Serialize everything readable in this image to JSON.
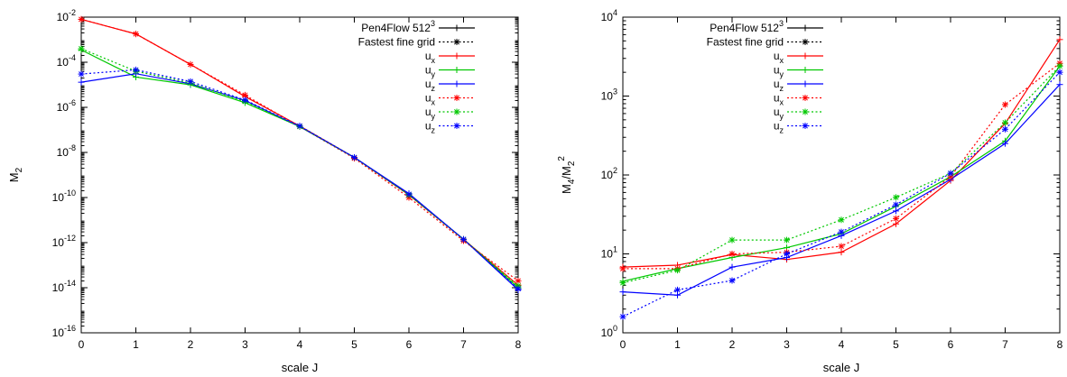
{
  "chart_data": [
    {
      "type": "line",
      "xlabel": "scale J",
      "ylabel_main": "M",
      "ylabel_sub": "2",
      "y_scale": "log",
      "xlim": [
        0,
        8
      ],
      "ylim": [
        1e-16,
        0.01
      ],
      "x_ticks": [
        "0",
        "1",
        "2",
        "3",
        "4",
        "5",
        "6",
        "7",
        "8"
      ],
      "y_ticks": [
        {
          "value": 1e-16,
          "base": "10",
          "exp": "-16"
        },
        {
          "value": 1e-14,
          "base": "10",
          "exp": "-14"
        },
        {
          "value": 1e-12,
          "base": "10",
          "exp": "-12"
        },
        {
          "value": 1e-10,
          "base": "10",
          "exp": "-10"
        },
        {
          "value": 1e-08,
          "base": "10",
          "exp": "-8"
        },
        {
          "value": 1e-06,
          "base": "10",
          "exp": "-6"
        },
        {
          "value": 0.0001,
          "base": "10",
          "exp": "-4"
        },
        {
          "value": 0.01,
          "base": "10",
          "exp": "-2"
        }
      ],
      "grid": false,
      "legend_position": "top-right",
      "legend": [
        {
          "label_main": "Pen4Flow 512",
          "label_sup": "3",
          "label_sub": "",
          "color": "#000000",
          "dash": "solid",
          "marker": "plus"
        },
        {
          "label_main": "Fastest fine grid",
          "label_sup": "",
          "label_sub": "",
          "color": "#000000",
          "dash": "dotted",
          "marker": "star"
        },
        {
          "label_main": "u",
          "label_sup": "",
          "label_sub": "x",
          "color": "#ff0000",
          "dash": "solid",
          "marker": "plus"
        },
        {
          "label_main": "u",
          "label_sup": "",
          "label_sub": "y",
          "color": "#00c800",
          "dash": "solid",
          "marker": "plus"
        },
        {
          "label_main": "u",
          "label_sup": "",
          "label_sub": "z",
          "color": "#0000ff",
          "dash": "solid",
          "marker": "plus"
        },
        {
          "label_main": "u",
          "label_sup": "",
          "label_sub": "x",
          "color": "#ff0000",
          "dash": "dotted",
          "marker": "star"
        },
        {
          "label_main": "u",
          "label_sup": "",
          "label_sub": "y",
          "color": "#00c800",
          "dash": "dotted",
          "marker": "star"
        },
        {
          "label_main": "u",
          "label_sup": "",
          "label_sub": "z",
          "color": "#0000ff",
          "dash": "dotted",
          "marker": "star"
        }
      ],
      "x": [
        0,
        1,
        2,
        3,
        4,
        5,
        6,
        7,
        8
      ],
      "series": [
        {
          "color": "#ff0000",
          "dash": "solid",
          "marker": "plus",
          "values": [
            0.008,
            0.0018,
            8e-05,
            3e-06,
            1.5e-07,
            6e-09,
            1.3e-10,
            1.4e-12,
            1.3e-14
          ]
        },
        {
          "color": "#00c800",
          "dash": "solid",
          "marker": "plus",
          "values": [
            0.00035,
            2.2e-05,
            1e-05,
            1.6e-06,
            1.4e-07,
            6e-09,
            1.4e-10,
            1.4e-12,
            1e-14
          ]
        },
        {
          "color": "#0000ff",
          "dash": "solid",
          "marker": "plus",
          "values": [
            1.3e-05,
            3.1e-05,
            1.1e-05,
            2e-06,
            1.4e-07,
            6e-09,
            1.5e-10,
            1.4e-12,
            8e-15
          ]
        },
        {
          "color": "#ff0000",
          "dash": "dotted",
          "marker": "star",
          "values": [
            0.008,
            0.0018,
            8e-05,
            3.5e-06,
            1.4e-07,
            5.5e-09,
            1e-10,
            1.2e-12,
            2e-14
          ]
        },
        {
          "color": "#00c800",
          "dash": "dotted",
          "marker": "star",
          "values": [
            0.0004,
            4e-05,
            1.2e-05,
            1.8e-06,
            1.4e-07,
            6e-09,
            1.3e-10,
            1.4e-12,
            1.2e-14
          ]
        },
        {
          "color": "#0000ff",
          "dash": "dotted",
          "marker": "star",
          "values": [
            3e-05,
            4.6e-05,
            1.4e-05,
            2.1e-06,
            1.5e-07,
            6e-09,
            1.4e-10,
            1.4e-12,
            9e-15
          ]
        }
      ]
    },
    {
      "type": "line",
      "xlabel": "scale J",
      "ylabel_main": "M",
      "ylabel_sub4": "4",
      "ylabel_mid": "/M",
      "ylabel_sub2": "2",
      "ylabel_sup": "2",
      "y_scale": "log",
      "xlim": [
        0,
        8
      ],
      "ylim": [
        1,
        10000.0
      ],
      "x_ticks": [
        "0",
        "1",
        "2",
        "3",
        "4",
        "5",
        "6",
        "7",
        "8"
      ],
      "y_ticks": [
        {
          "value": 1,
          "base": "10",
          "exp": "0"
        },
        {
          "value": 10,
          "base": "10",
          "exp": "1"
        },
        {
          "value": 100,
          "base": "10",
          "exp": "2"
        },
        {
          "value": 1000,
          "base": "10",
          "exp": "3"
        },
        {
          "value": 10000,
          "base": "10",
          "exp": "4"
        }
      ],
      "grid": false,
      "legend_position": "top-left",
      "legend": [
        {
          "label_main": "Pen4Flow 512",
          "label_sup": "3",
          "label_sub": "",
          "color": "#000000",
          "dash": "solid",
          "marker": "plus"
        },
        {
          "label_main": "Fastest fine grid",
          "label_sup": "",
          "label_sub": "",
          "color": "#000000",
          "dash": "dotted",
          "marker": "star"
        },
        {
          "label_main": "u",
          "label_sup": "",
          "label_sub": "x",
          "color": "#ff0000",
          "dash": "solid",
          "marker": "plus"
        },
        {
          "label_main": "u",
          "label_sup": "",
          "label_sub": "y",
          "color": "#00c800",
          "dash": "solid",
          "marker": "plus"
        },
        {
          "label_main": "u",
          "label_sup": "",
          "label_sub": "z",
          "color": "#0000ff",
          "dash": "solid",
          "marker": "plus"
        },
        {
          "label_main": "u",
          "label_sup": "",
          "label_sub": "x",
          "color": "#ff0000",
          "dash": "dotted",
          "marker": "star"
        },
        {
          "label_main": "u",
          "label_sup": "",
          "label_sub": "y",
          "color": "#00c800",
          "dash": "dotted",
          "marker": "star"
        },
        {
          "label_main": "u",
          "label_sup": "",
          "label_sub": "z",
          "color": "#0000ff",
          "dash": "dotted",
          "marker": "star"
        }
      ],
      "x": [
        0,
        1,
        2,
        3,
        4,
        5,
        6,
        7,
        8
      ],
      "series": [
        {
          "color": "#ff0000",
          "dash": "solid",
          "marker": "plus",
          "values": [
            6.8,
            7.2,
            9.8,
            8.5,
            10.5,
            24,
            85,
            450,
            5200
          ]
        },
        {
          "color": "#00c800",
          "dash": "solid",
          "marker": "plus",
          "values": [
            4.5,
            6.5,
            9,
            12,
            18,
            40,
            95,
            270,
            2400
          ]
        },
        {
          "color": "#0000ff",
          "dash": "solid",
          "marker": "plus",
          "values": [
            3.3,
            3.0,
            6.8,
            9,
            17,
            35,
            88,
            250,
            1400
          ]
        },
        {
          "color": "#ff0000",
          "dash": "dotted",
          "marker": "star",
          "values": [
            6.5,
            6.5,
            10,
            10.5,
            12.5,
            28,
            95,
            780,
            2600
          ]
        },
        {
          "color": "#00c800",
          "dash": "dotted",
          "marker": "star",
          "values": [
            4.3,
            6.2,
            15,
            15,
            27,
            52,
            105,
            460,
            2400
          ]
        },
        {
          "color": "#0000ff",
          "dash": "dotted",
          "marker": "star",
          "values": [
            1.6,
            3.5,
            4.6,
            10,
            19,
            42,
            105,
            380,
            2000
          ]
        }
      ]
    }
  ]
}
